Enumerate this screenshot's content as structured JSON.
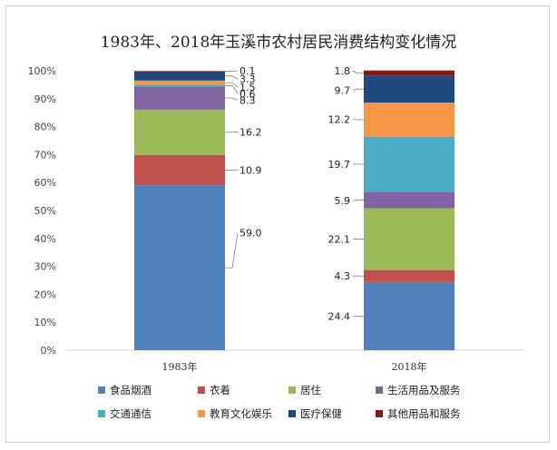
{
  "chart_data": {
    "type": "bar",
    "stacked": "percent",
    "title": "1983年、2018年玉溪市农村居民消费结构变化情况",
    "categories": [
      "1983年",
      "2018年"
    ],
    "y_tick_labels": [
      "0%",
      "10%",
      "20%",
      "30%",
      "40%",
      "50%",
      "60%",
      "70%",
      "80%",
      "90%",
      "100%"
    ],
    "ylim": [
      0,
      100
    ],
    "grid": false,
    "legend_position": "bottom",
    "series": [
      {
        "name": "食品烟酒",
        "color": "#4f81bd",
        "values": [
          59.0,
          24.4
        ],
        "labels": [
          "59.0",
          "24.4"
        ]
      },
      {
        "name": "衣着",
        "color": "#c0504d",
        "values": [
          10.9,
          4.3
        ],
        "labels": [
          "10.9",
          "4.3"
        ]
      },
      {
        "name": "居住",
        "color": "#9bbb59",
        "values": [
          16.2,
          22.1
        ],
        "labels": [
          "16.2",
          "22.1"
        ]
      },
      {
        "name": "生活用品及服务",
        "color": "#8064a2",
        "values": [
          8.3,
          5.9
        ],
        "labels": [
          "8.3",
          "5.9"
        ]
      },
      {
        "name": "交通通信",
        "color": "#4bacc6",
        "values": [
          0.6,
          19.7
        ],
        "labels": [
          "0.6",
          "19.7"
        ]
      },
      {
        "name": "教育文化娱乐",
        "color": "#f79646",
        "values": [
          1.5,
          12.2
        ],
        "labels": [
          "1.5",
          "12.2"
        ]
      },
      {
        "name": "医疗保健",
        "color": "#1f497d",
        "values": [
          3.3,
          9.7
        ],
        "labels": [
          "3.3",
          "9.7"
        ]
      },
      {
        "name": "其他用品和服务",
        "color": "#7f1d1d",
        "values": [
          0.1,
          1.8
        ],
        "labels": [
          "0.1",
          "1.8"
        ]
      }
    ]
  }
}
